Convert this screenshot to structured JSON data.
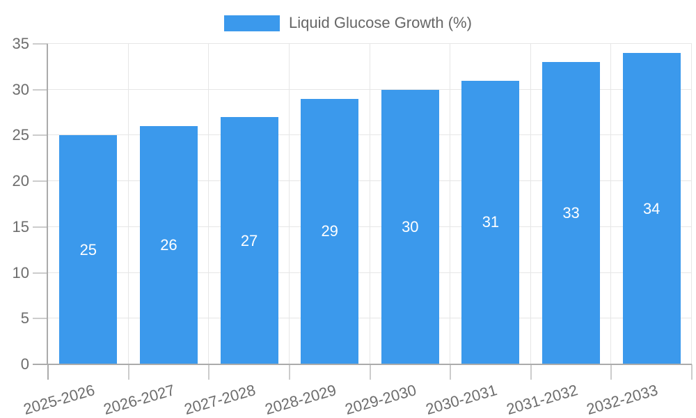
{
  "legend": {
    "label": "Liquid Glucose Growth (%)"
  },
  "chart_data": {
    "type": "bar",
    "title": "",
    "xlabel": "",
    "ylabel": "",
    "categories": [
      "2025-2026",
      "2026-2027",
      "2027-2028",
      "2028-2029",
      "2029-2030",
      "2030-2031",
      "2031-2032",
      "2032-2033"
    ],
    "series": [
      {
        "name": "Liquid Glucose Growth (%)",
        "values": [
          25,
          26,
          27,
          29,
          30,
          31,
          33,
          34
        ]
      }
    ],
    "ylim": [
      0,
      35
    ],
    "yticks": [
      0,
      5,
      10,
      15,
      20,
      25,
      30,
      35
    ],
    "grid": true,
    "legend_position": "top",
    "show_value_labels": true,
    "x_label_rotation_deg": -16,
    "bar_color": "#3b99ec",
    "value_label_color": "#ffffff",
    "grid_color": "#e6e6e6",
    "axis_color": "#ababab",
    "tick_color": "#cccccc",
    "tick_label_color": "#6d6d6d"
  }
}
